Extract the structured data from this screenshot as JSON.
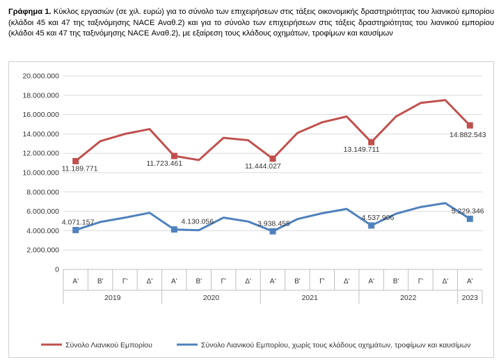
{
  "caption": {
    "bold": "Γράφημα 1.",
    "text": " Κύκλος εργασιών (σε χιλ. ευρώ) για το σύνολο των επιχειρήσεων στις τάξεις οικονομικής δραστηριότητας του λιανικού εμπορίου (κλάδοι 45 και 47 της ταξινόμησης NACE Αναθ.2) και για το σύνολο των επιχειρήσεων στις τάξεις δραστηριότητας του λιανικού εμπορίου (κλάδοι 45 και 47 της ταξινόμησης NACE Αναθ.2), με εξαίρεση τους κλάδους οχημάτων, τροφίμων και καυσίμων"
  },
  "colors": {
    "series1": "#c0504d",
    "series2": "#4f81bd",
    "grid": "#d9d9d9",
    "axis": "#bfbfbf"
  },
  "chart_data": {
    "type": "line",
    "title": "",
    "xlabel": "",
    "ylabel": "",
    "ylim": [
      0,
      20000000
    ],
    "yticks": [
      0,
      2000000,
      4000000,
      6000000,
      8000000,
      10000000,
      12000000,
      14000000,
      16000000,
      18000000,
      20000000
    ],
    "ytick_labels": [
      "0",
      "2.000.000",
      "4.000.000",
      "6.000.000",
      "8.000.000",
      "10.000.000",
      "12.000.000",
      "14.000.000",
      "16.000.000",
      "18.000.000",
      "20.000.000"
    ],
    "grid": true,
    "legend_position": "bottom",
    "categories": [
      "Α'",
      "Β'",
      "Γ'",
      "Δ'",
      "Α'",
      "Β'",
      "Γ'",
      "Δ'",
      "Α'",
      "Β'",
      "Γ'",
      "Δ'",
      "Α'",
      "Β'",
      "Γ'",
      "Δ'",
      "Α'"
    ],
    "years": [
      {
        "label": "2019",
        "count": 4
      },
      {
        "label": "2020",
        "count": 4
      },
      {
        "label": "2021",
        "count": 4
      },
      {
        "label": "2022",
        "count": 4
      },
      {
        "label": "2023",
        "count": 1
      }
    ],
    "series": [
      {
        "name": "Σύνολο Λιανικού Εμπορίου",
        "values": [
          11189771,
          13250000,
          14000000,
          14500000,
          11723461,
          11300000,
          13600000,
          13350000,
          11444027,
          14100000,
          15200000,
          15800000,
          13149711,
          15800000,
          17200000,
          17500000,
          14882543
        ],
        "labels": [
          {
            "index": 0,
            "text": "11.189.771"
          },
          {
            "index": 4,
            "text": "11.723.461"
          },
          {
            "index": 8,
            "text": "11.444.027"
          },
          {
            "index": 12,
            "text": "13.149.711"
          },
          {
            "index": 16,
            "text": "14.882.543"
          }
        ]
      },
      {
        "name": "Σύνολο Λιανικού Εμπορίου, χωρίς τους κλάδους οχημάτων, τροφίμων και καυσίμων",
        "values": [
          4071157,
          4900000,
          5350000,
          5850000,
          4130056,
          4050000,
          5350000,
          4950000,
          3938455,
          5200000,
          5800000,
          6250000,
          4537906,
          5750000,
          6450000,
          6850000,
          5229346
        ],
        "labels": [
          {
            "index": 0,
            "text": "4.071.157"
          },
          {
            "index": 4,
            "text": "4.130.056"
          },
          {
            "index": 8,
            "text": "3.938.455"
          },
          {
            "index": 12,
            "text": "4.537.906"
          },
          {
            "index": 16,
            "text": "5.229.346"
          }
        ]
      }
    ]
  }
}
